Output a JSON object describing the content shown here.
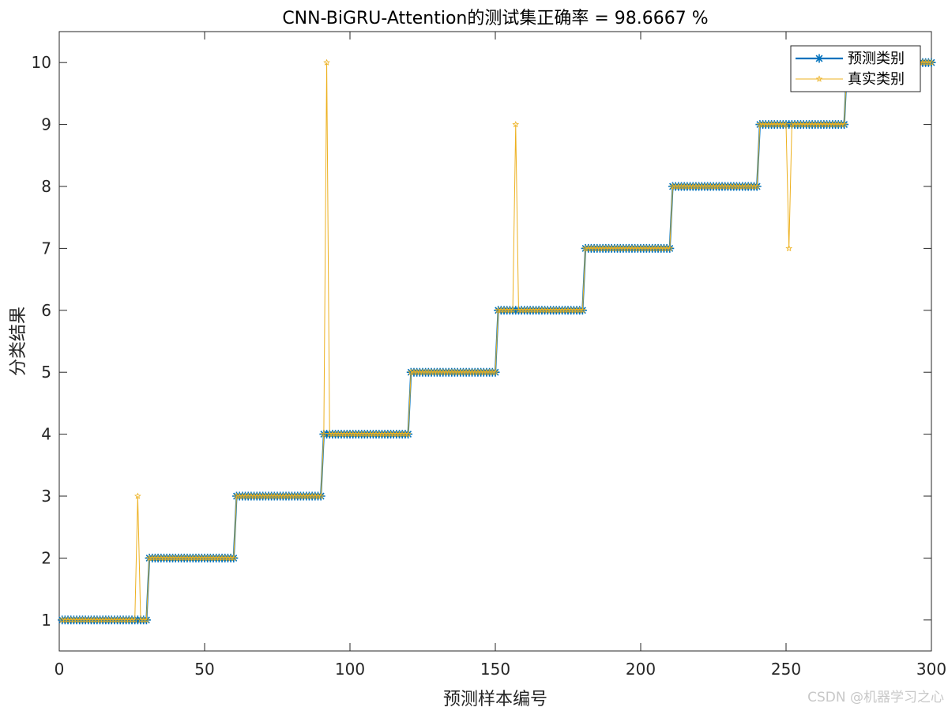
{
  "watermark": "CSDN @机器学习之心",
  "chart_data": {
    "type": "line",
    "title": "CNN-BiGRU-Attention的测试集正确率 = 98.6667 %",
    "xlabel": "预测样本编号",
    "ylabel": "分类结果",
    "xlim": [
      0,
      300
    ],
    "ylim": [
      0.5,
      10.5
    ],
    "xticks": [
      0,
      50,
      100,
      150,
      200,
      250,
      300
    ],
    "yticks": [
      1,
      2,
      3,
      4,
      5,
      6,
      7,
      8,
      9,
      10
    ],
    "xtick_labels": [
      "0",
      "50",
      "100",
      "150",
      "200",
      "250",
      "300"
    ],
    "ytick_labels": [
      "1",
      "2",
      "3",
      "4",
      "5",
      "6",
      "7",
      "8",
      "9",
      "10"
    ],
    "grid": false,
    "legend_position": "top-right",
    "legend": [
      "预测类别",
      "真实类别"
    ],
    "series": [
      {
        "name": "预测类别",
        "marker": "*",
        "color": "#0072BD",
        "x_start": 1,
        "values": [
          1,
          1,
          1,
          1,
          1,
          1,
          1,
          1,
          1,
          1,
          1,
          1,
          1,
          1,
          1,
          1,
          1,
          1,
          1,
          1,
          1,
          1,
          1,
          1,
          1,
          1,
          1,
          1,
          1,
          1,
          2,
          2,
          2,
          2,
          2,
          2,
          2,
          2,
          2,
          2,
          2,
          2,
          2,
          2,
          2,
          2,
          2,
          2,
          2,
          2,
          2,
          2,
          2,
          2,
          2,
          2,
          2,
          2,
          2,
          2,
          3,
          3,
          3,
          3,
          3,
          3,
          3,
          3,
          3,
          3,
          3,
          3,
          3,
          3,
          3,
          3,
          3,
          3,
          3,
          3,
          3,
          3,
          3,
          3,
          3,
          3,
          3,
          3,
          3,
          3,
          4,
          4,
          4,
          4,
          4,
          4,
          4,
          4,
          4,
          4,
          4,
          4,
          4,
          4,
          4,
          4,
          4,
          4,
          4,
          4,
          4,
          4,
          4,
          4,
          4,
          4,
          4,
          4,
          4,
          4,
          5,
          5,
          5,
          5,
          5,
          5,
          5,
          5,
          5,
          5,
          5,
          5,
          5,
          5,
          5,
          5,
          5,
          5,
          5,
          5,
          5,
          5,
          5,
          5,
          5,
          5,
          5,
          5,
          5,
          5,
          6,
          6,
          6,
          6,
          6,
          6,
          6,
          6,
          6,
          6,
          6,
          6,
          6,
          6,
          6,
          6,
          6,
          6,
          6,
          6,
          6,
          6,
          6,
          6,
          6,
          6,
          6,
          6,
          6,
          6,
          7,
          7,
          7,
          7,
          7,
          7,
          7,
          7,
          7,
          7,
          7,
          7,
          7,
          7,
          7,
          7,
          7,
          7,
          7,
          7,
          7,
          7,
          7,
          7,
          7,
          7,
          7,
          7,
          7,
          7,
          8,
          8,
          8,
          8,
          8,
          8,
          8,
          8,
          8,
          8,
          8,
          8,
          8,
          8,
          8,
          8,
          8,
          8,
          8,
          8,
          8,
          8,
          8,
          8,
          8,
          8,
          8,
          8,
          8,
          8,
          9,
          9,
          9,
          9,
          9,
          9,
          9,
          9,
          9,
          9,
          9,
          9,
          9,
          9,
          9,
          9,
          9,
          9,
          9,
          9,
          9,
          9,
          9,
          9,
          9,
          9,
          9,
          9,
          9,
          9,
          10,
          10,
          10,
          10,
          10,
          10,
          10,
          10,
          10,
          10,
          10,
          10,
          10,
          10,
          10,
          10,
          10,
          10,
          10,
          10,
          10,
          10,
          10,
          10,
          10,
          10,
          10,
          10,
          10,
          10
        ]
      },
      {
        "name": "真实类别",
        "marker": "*",
        "color": "#EDB120",
        "x_start": 1,
        "values": [
          1,
          1,
          1,
          1,
          1,
          1,
          1,
          1,
          1,
          1,
          1,
          1,
          1,
          1,
          1,
          1,
          1,
          1,
          1,
          1,
          1,
          1,
          1,
          1,
          1,
          1,
          3,
          1,
          1,
          1,
          2,
          2,
          2,
          2,
          2,
          2,
          2,
          2,
          2,
          2,
          2,
          2,
          2,
          2,
          2,
          2,
          2,
          2,
          2,
          2,
          2,
          2,
          2,
          2,
          2,
          2,
          2,
          2,
          2,
          2,
          3,
          3,
          3,
          3,
          3,
          3,
          3,
          3,
          3,
          3,
          3,
          3,
          3,
          3,
          3,
          3,
          3,
          3,
          3,
          3,
          3,
          3,
          3,
          3,
          3,
          3,
          3,
          3,
          3,
          3,
          4,
          10,
          4,
          4,
          4,
          4,
          4,
          4,
          4,
          4,
          4,
          4,
          4,
          4,
          4,
          4,
          4,
          4,
          4,
          4,
          4,
          4,
          4,
          4,
          4,
          4,
          4,
          4,
          4,
          4,
          5,
          5,
          5,
          5,
          5,
          5,
          5,
          5,
          5,
          5,
          5,
          5,
          5,
          5,
          5,
          5,
          5,
          5,
          5,
          5,
          5,
          5,
          5,
          5,
          5,
          5,
          5,
          5,
          5,
          5,
          6,
          6,
          6,
          6,
          6,
          6,
          9,
          6,
          6,
          6,
          6,
          6,
          6,
          6,
          6,
          6,
          6,
          6,
          6,
          6,
          6,
          6,
          6,
          6,
          6,
          6,
          6,
          6,
          6,
          6,
          7,
          7,
          7,
          7,
          7,
          7,
          7,
          7,
          7,
          7,
          7,
          7,
          7,
          7,
          7,
          7,
          7,
          7,
          7,
          7,
          7,
          7,
          7,
          7,
          7,
          7,
          7,
          7,
          7,
          7,
          8,
          8,
          8,
          8,
          8,
          8,
          8,
          8,
          8,
          8,
          8,
          8,
          8,
          8,
          8,
          8,
          8,
          8,
          8,
          8,
          8,
          8,
          8,
          8,
          8,
          8,
          8,
          8,
          8,
          8,
          9,
          9,
          9,
          9,
          9,
          9,
          9,
          9,
          9,
          9,
          7,
          9,
          9,
          9,
          9,
          9,
          9,
          9,
          9,
          9,
          9,
          9,
          9,
          9,
          9,
          9,
          9,
          9,
          9,
          9,
          10,
          10,
          10,
          10,
          10,
          10,
          10,
          10,
          10,
          10,
          10,
          10,
          10,
          10,
          10,
          10,
          10,
          10,
          10,
          10,
          10,
          10,
          10,
          10,
          10,
          10,
          10,
          10,
          10,
          10
        ]
      }
    ]
  }
}
